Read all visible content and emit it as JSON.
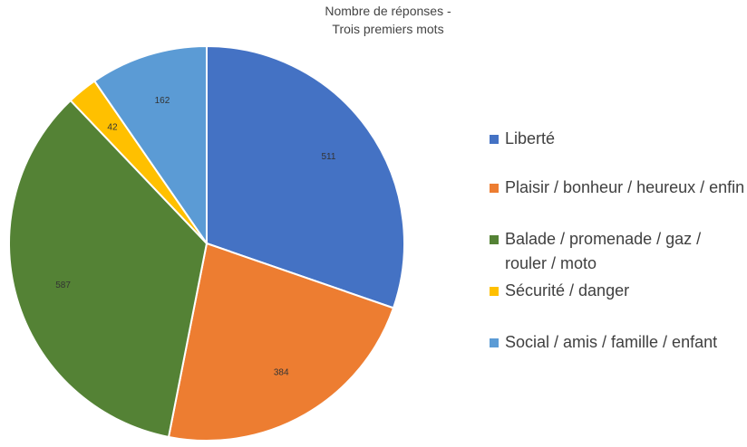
{
  "chart_data": {
    "type": "pie",
    "title": [
      "Nombre de réponses -",
      "Trois premiers mots"
    ],
    "slices": [
      {
        "label": "Liberté",
        "value": 511,
        "color": "#4472C4"
      },
      {
        "label": "Plaisir / bonheur / heureux / enfin",
        "value": 384,
        "color": "#ED7D31"
      },
      {
        "label": "Balade / promenade / gaz / rouler / moto",
        "value": 587,
        "color": "#548235"
      },
      {
        "label": "Sécurité / danger",
        "value": 42,
        "color": "#FFC000"
      },
      {
        "label": "Social / amis / famille / enfant",
        "value": 162,
        "color": "#5B9BD5"
      }
    ],
    "legend_position": "right",
    "start_angle": "top",
    "direction": "clockwise"
  }
}
